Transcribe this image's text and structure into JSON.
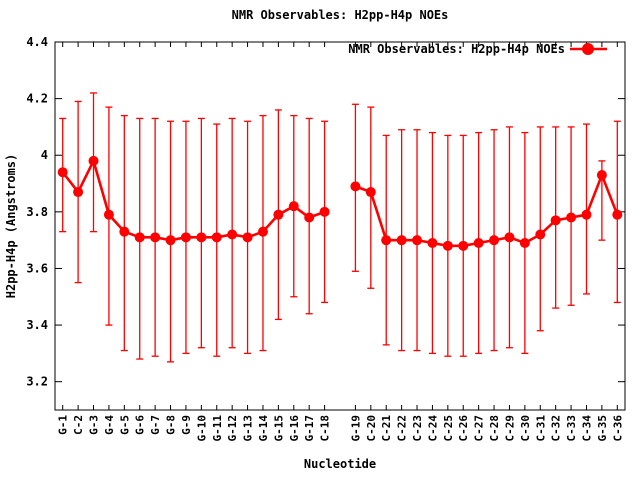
{
  "title": "NMR Observables: H2pp-H4p NOEs",
  "colors": {
    "series": "#ff0000",
    "axis": "#000000",
    "background": "#ffffff"
  },
  "chart_data": {
    "type": "line",
    "title": "NMR Observables: H2pp-H4p NOEs",
    "series_name": "NMR Observables: H2pp-H4p NOEs",
    "xlabel": "Nucleotide",
    "ylabel": "H2pp-H4p (Angstroms)",
    "ylim": [
      3.1,
      4.4
    ],
    "yticks": [
      3.2,
      3.4,
      3.6,
      3.8,
      4,
      4.2,
      4.4
    ],
    "ytick_labels": [
      "3.2",
      "3.4",
      "3.6",
      "3.8",
      "4",
      "4.2",
      "4.4"
    ],
    "grid": false,
    "legend_position": "top-right-inside",
    "marker": "filled-circle",
    "color": "#ff0000",
    "gap_after_index": 17,
    "categories": [
      "G-1",
      "C-2",
      "G-3",
      "G-4",
      "G-5",
      "G-6",
      "G-7",
      "G-8",
      "G-9",
      "G-10",
      "G-11",
      "G-12",
      "G-13",
      "G-14",
      "G-15",
      "G-16",
      "G-17",
      "C-18",
      "G-19",
      "C-20",
      "C-21",
      "C-22",
      "C-23",
      "C-24",
      "C-25",
      "C-26",
      "C-27",
      "C-28",
      "C-29",
      "C-30",
      "C-31",
      "C-32",
      "C-33",
      "C-34",
      "G-35",
      "C-36"
    ],
    "values": [
      3.94,
      3.87,
      3.98,
      3.79,
      3.73,
      3.71,
      3.71,
      3.7,
      3.71,
      3.71,
      3.71,
      3.72,
      3.71,
      3.73,
      3.79,
      3.82,
      3.78,
      3.8,
      3.89,
      3.87,
      3.7,
      3.7,
      3.7,
      3.69,
      3.68,
      3.68,
      3.69,
      3.7,
      3.71,
      3.69,
      3.72,
      3.77,
      3.78,
      3.79,
      3.93,
      3.79
    ],
    "err_low": [
      3.73,
      3.55,
      3.73,
      3.4,
      3.31,
      3.28,
      3.29,
      3.27,
      3.3,
      3.32,
      3.29,
      3.32,
      3.3,
      3.31,
      3.42,
      3.5,
      3.44,
      3.48,
      3.59,
      3.53,
      3.33,
      3.31,
      3.31,
      3.3,
      3.29,
      3.29,
      3.3,
      3.31,
      3.32,
      3.3,
      3.38,
      3.46,
      3.47,
      3.51,
      3.7,
      3.48
    ],
    "err_high": [
      4.13,
      4.19,
      4.22,
      4.17,
      4.14,
      4.13,
      4.13,
      4.12,
      4.12,
      4.13,
      4.11,
      4.13,
      4.12,
      4.14,
      4.16,
      4.14,
      4.13,
      4.12,
      4.18,
      4.17,
      4.07,
      4.09,
      4.09,
      4.08,
      4.07,
      4.07,
      4.08,
      4.09,
      4.1,
      4.08,
      4.1,
      4.1,
      4.1,
      4.11,
      3.98,
      4.12
    ]
  }
}
